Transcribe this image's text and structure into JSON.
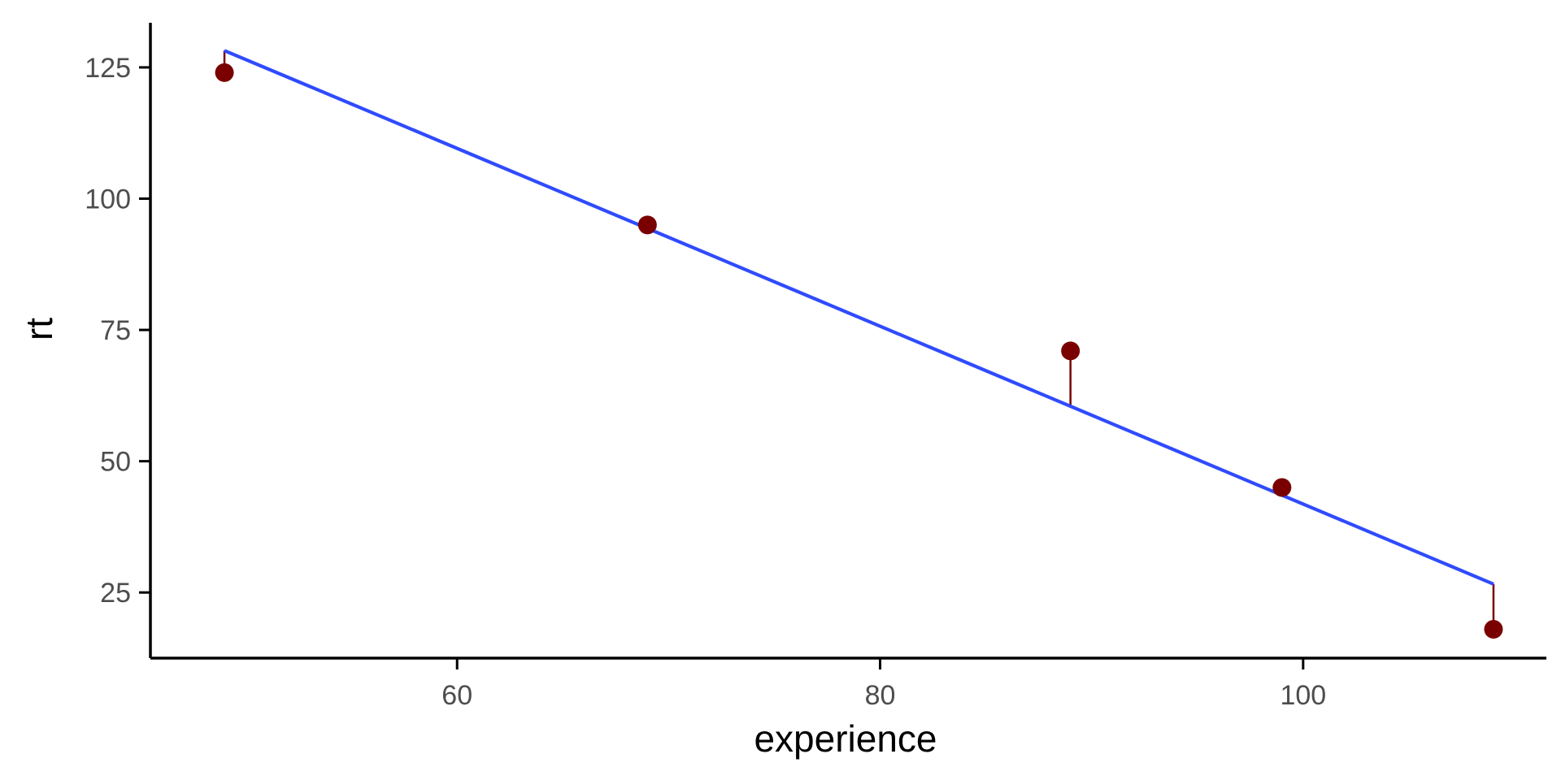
{
  "chart_data": {
    "type": "scatter",
    "title": "",
    "xlabel": "experience",
    "ylabel": "rt",
    "xlim": [
      45.5,
      111.5
    ],
    "ylim": [
      12.5,
      133.5
    ],
    "x_ticks": [
      60,
      80,
      100
    ],
    "y_ticks": [
      25,
      50,
      75,
      100,
      125
    ],
    "x_tick_labels": [
      "60",
      "80",
      "100"
    ],
    "y_tick_labels": [
      "25",
      "50",
      "75",
      "100",
      "125"
    ],
    "grid": false,
    "legend": "none",
    "series": [
      {
        "points": [
          {
            "x": 49,
            "y": 124
          },
          {
            "x": 69,
            "y": 95
          },
          {
            "x": 89,
            "y": 71
          },
          {
            "x": 99,
            "y": 45
          },
          {
            "x": 109,
            "y": 18
          }
        ]
      }
    ],
    "fit_line": {
      "type": "linear",
      "start": {
        "x": 49,
        "y": 128.2
      },
      "end": {
        "x": 109,
        "y": 26.6
      }
    },
    "residuals": true,
    "colors": {
      "points": "#7a0000",
      "residuals": "#7a0000",
      "fit_line": "#2f4bff",
      "axis": "#000000",
      "tick_text": "#4d4d4d",
      "axis_title": "#000000"
    }
  }
}
